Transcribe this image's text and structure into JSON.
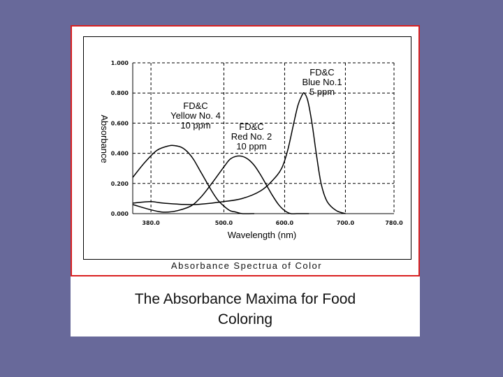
{
  "slide": {
    "caption_line1": "The Absorbance Maxima for Food",
    "caption_line2": "Coloring",
    "background": "#68699a"
  },
  "figure": {
    "caption": "Absorbance Spectrua of Color",
    "frame_color": "#d92020"
  },
  "chart_data": {
    "type": "line",
    "xlabel": "Wavelength (nm)",
    "ylabel": "Absorbance",
    "xlim": [
      350,
      780
    ],
    "ylim": [
      0,
      1.0
    ],
    "x_ticks": [
      380,
      500,
      600,
      700,
      780
    ],
    "x_tick_labels": [
      "380.0",
      "500.0",
      "600.0",
      "700.0",
      "780.0"
    ],
    "y_ticks": [
      0,
      0.2,
      0.4,
      0.6,
      0.8,
      1.0
    ],
    "y_tick_labels": [
      "0.000",
      "0.200",
      "0.400",
      "0.600",
      "0.800",
      "1.000"
    ],
    "grid": true,
    "series": [
      {
        "name_lines": [
          "FD&C",
          "Yellow No. 4",
          "10 ppm"
        ],
        "x": [
          350,
          370,
          390,
          410,
          420,
          430,
          440,
          450,
          460,
          470,
          480,
          490,
          500,
          510,
          520,
          530,
          550
        ],
        "y": [
          0.24,
          0.34,
          0.42,
          0.45,
          0.45,
          0.44,
          0.41,
          0.36,
          0.29,
          0.22,
          0.15,
          0.09,
          0.05,
          0.02,
          0.01,
          0.0,
          0.0
        ]
      },
      {
        "name_lines": [
          "FD&C",
          "Red No. 2",
          "10 ppm"
        ],
        "x": [
          350,
          400,
          440,
          460,
          480,
          500,
          510,
          520,
          530,
          540,
          550,
          560,
          570,
          580,
          590,
          600,
          610,
          620,
          640
        ],
        "y": [
          0.06,
          0.01,
          0.04,
          0.1,
          0.2,
          0.31,
          0.36,
          0.38,
          0.38,
          0.36,
          0.32,
          0.26,
          0.19,
          0.12,
          0.06,
          0.02,
          0.0,
          0.0,
          0.0
        ]
      },
      {
        "name_lines": [
          "FD&C",
          "Blue No.1",
          "5 ppm"
        ],
        "x": [
          350,
          380,
          400,
          450,
          500,
          530,
          560,
          580,
          595,
          605,
          615,
          622,
          628,
          632,
          638,
          645,
          652,
          660,
          670,
          685,
          700
        ],
        "y": [
          0.07,
          0.08,
          0.07,
          0.06,
          0.08,
          0.1,
          0.15,
          0.22,
          0.3,
          0.42,
          0.6,
          0.72,
          0.78,
          0.8,
          0.75,
          0.6,
          0.4,
          0.2,
          0.08,
          0.02,
          0.0
        ]
      }
    ]
  }
}
